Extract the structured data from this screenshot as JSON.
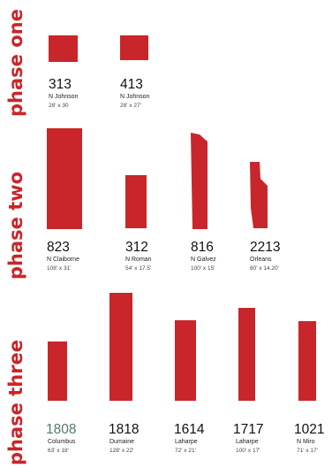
{
  "phases": [
    {
      "label": "phase one"
    },
    {
      "label": "phase two"
    },
    {
      "label": "phase three"
    }
  ],
  "colors": {
    "accent": "#c8262b",
    "shape": "#c8262b",
    "number_default": "#111111",
    "number_muted": "#4f7a6e"
  },
  "buildings": [
    {
      "number": "313",
      "street": "N Johnson",
      "dims": "28' x 30"
    },
    {
      "number": "413",
      "street": "N Johnson",
      "dims": "28' x 27'"
    },
    {
      "number": "823",
      "street": "N Claiborne",
      "dims": "108' x 31'"
    },
    {
      "number": "312",
      "street": "N Roman",
      "dims": "54' x 17.5'"
    },
    {
      "number": "816",
      "street": "N Galvez",
      "dims": "100' x 15'"
    },
    {
      "number": "2213",
      "street": "Orleans",
      "dims": "80' x 14.20'"
    },
    {
      "number": "1808",
      "street": "Columbus",
      "dims": "63' x 18'"
    },
    {
      "number": "1818",
      "street": "Dumaine",
      "dims": "128' x 22'"
    },
    {
      "number": "1614",
      "street": "Laharpe",
      "dims": "72' x 21'"
    },
    {
      "number": "1717",
      "street": "Laharpe",
      "dims": "100' x 17'"
    },
    {
      "number": "1021",
      "street": "N Miro",
      "dims": "71' x 17'"
    }
  ]
}
